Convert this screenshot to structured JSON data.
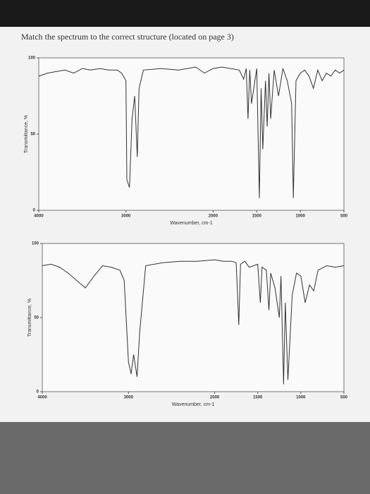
{
  "title": "Match the spectrum to the correct structure (located on page 3)",
  "chart_data": [
    {
      "type": "line",
      "xlabel": "Wavenumber, cm-1",
      "ylabel": "Transmittance, %",
      "color": "#333333",
      "xlim": [
        4000,
        500
      ],
      "ylim": [
        0,
        100
      ],
      "xticks": [
        4000,
        3000,
        2000,
        1500,
        1000,
        500
      ],
      "yticks": [
        0,
        50,
        100
      ],
      "x": [
        4000,
        3900,
        3800,
        3700,
        3600,
        3500,
        3400,
        3300,
        3200,
        3100,
        3050,
        3000,
        2990,
        2960,
        2930,
        2900,
        2870,
        2850,
        2800,
        2600,
        2400,
        2200,
        2100,
        2000,
        1900,
        1800,
        1700,
        1650,
        1620,
        1600,
        1580,
        1560,
        1500,
        1470,
        1450,
        1430,
        1400,
        1380,
        1360,
        1340,
        1300,
        1250,
        1200,
        1150,
        1100,
        1080,
        1050,
        1000,
        950,
        900,
        850,
        800,
        750,
        700,
        650,
        600,
        550,
        500
      ],
      "values": [
        88,
        90,
        91,
        92,
        90,
        93,
        92,
        93,
        92,
        92,
        90,
        85,
        20,
        15,
        60,
        75,
        35,
        80,
        92,
        93,
        92,
        94,
        90,
        93,
        94,
        93,
        92,
        86,
        93,
        60,
        92,
        70,
        93,
        8,
        80,
        40,
        85,
        55,
        90,
        60,
        92,
        75,
        93,
        85,
        70,
        8,
        85,
        90,
        92,
        88,
        80,
        92,
        85,
        90,
        88,
        92,
        90,
        92
      ]
    },
    {
      "type": "line",
      "xlabel": "Wavenumber, cm-1",
      "ylabel": "Transmittance, %",
      "color": "#333333",
      "xlim": [
        4000,
        500
      ],
      "ylim": [
        0,
        100
      ],
      "xticks": [
        4000,
        3000,
        2000,
        1500,
        1000,
        500
      ],
      "yticks": [
        0,
        50,
        100
      ],
      "x": [
        4000,
        3900,
        3800,
        3700,
        3600,
        3500,
        3400,
        3300,
        3200,
        3100,
        3050,
        3000,
        2970,
        2940,
        2900,
        2870,
        2800,
        2600,
        2400,
        2200,
        2000,
        1900,
        1800,
        1750,
        1720,
        1700,
        1650,
        1600,
        1500,
        1470,
        1450,
        1400,
        1370,
        1350,
        1300,
        1250,
        1230,
        1200,
        1180,
        1150,
        1100,
        1050,
        1000,
        950,
        900,
        850,
        800,
        700,
        600,
        500
      ],
      "values": [
        85,
        86,
        84,
        80,
        75,
        70,
        78,
        85,
        84,
        82,
        75,
        20,
        12,
        25,
        10,
        40,
        85,
        87,
        88,
        88,
        89,
        88,
        88,
        87,
        45,
        86,
        88,
        84,
        86,
        60,
        84,
        82,
        55,
        80,
        70,
        50,
        78,
        5,
        60,
        8,
        65,
        80,
        78,
        60,
        72,
        68,
        82,
        85,
        84,
        85
      ]
    }
  ]
}
